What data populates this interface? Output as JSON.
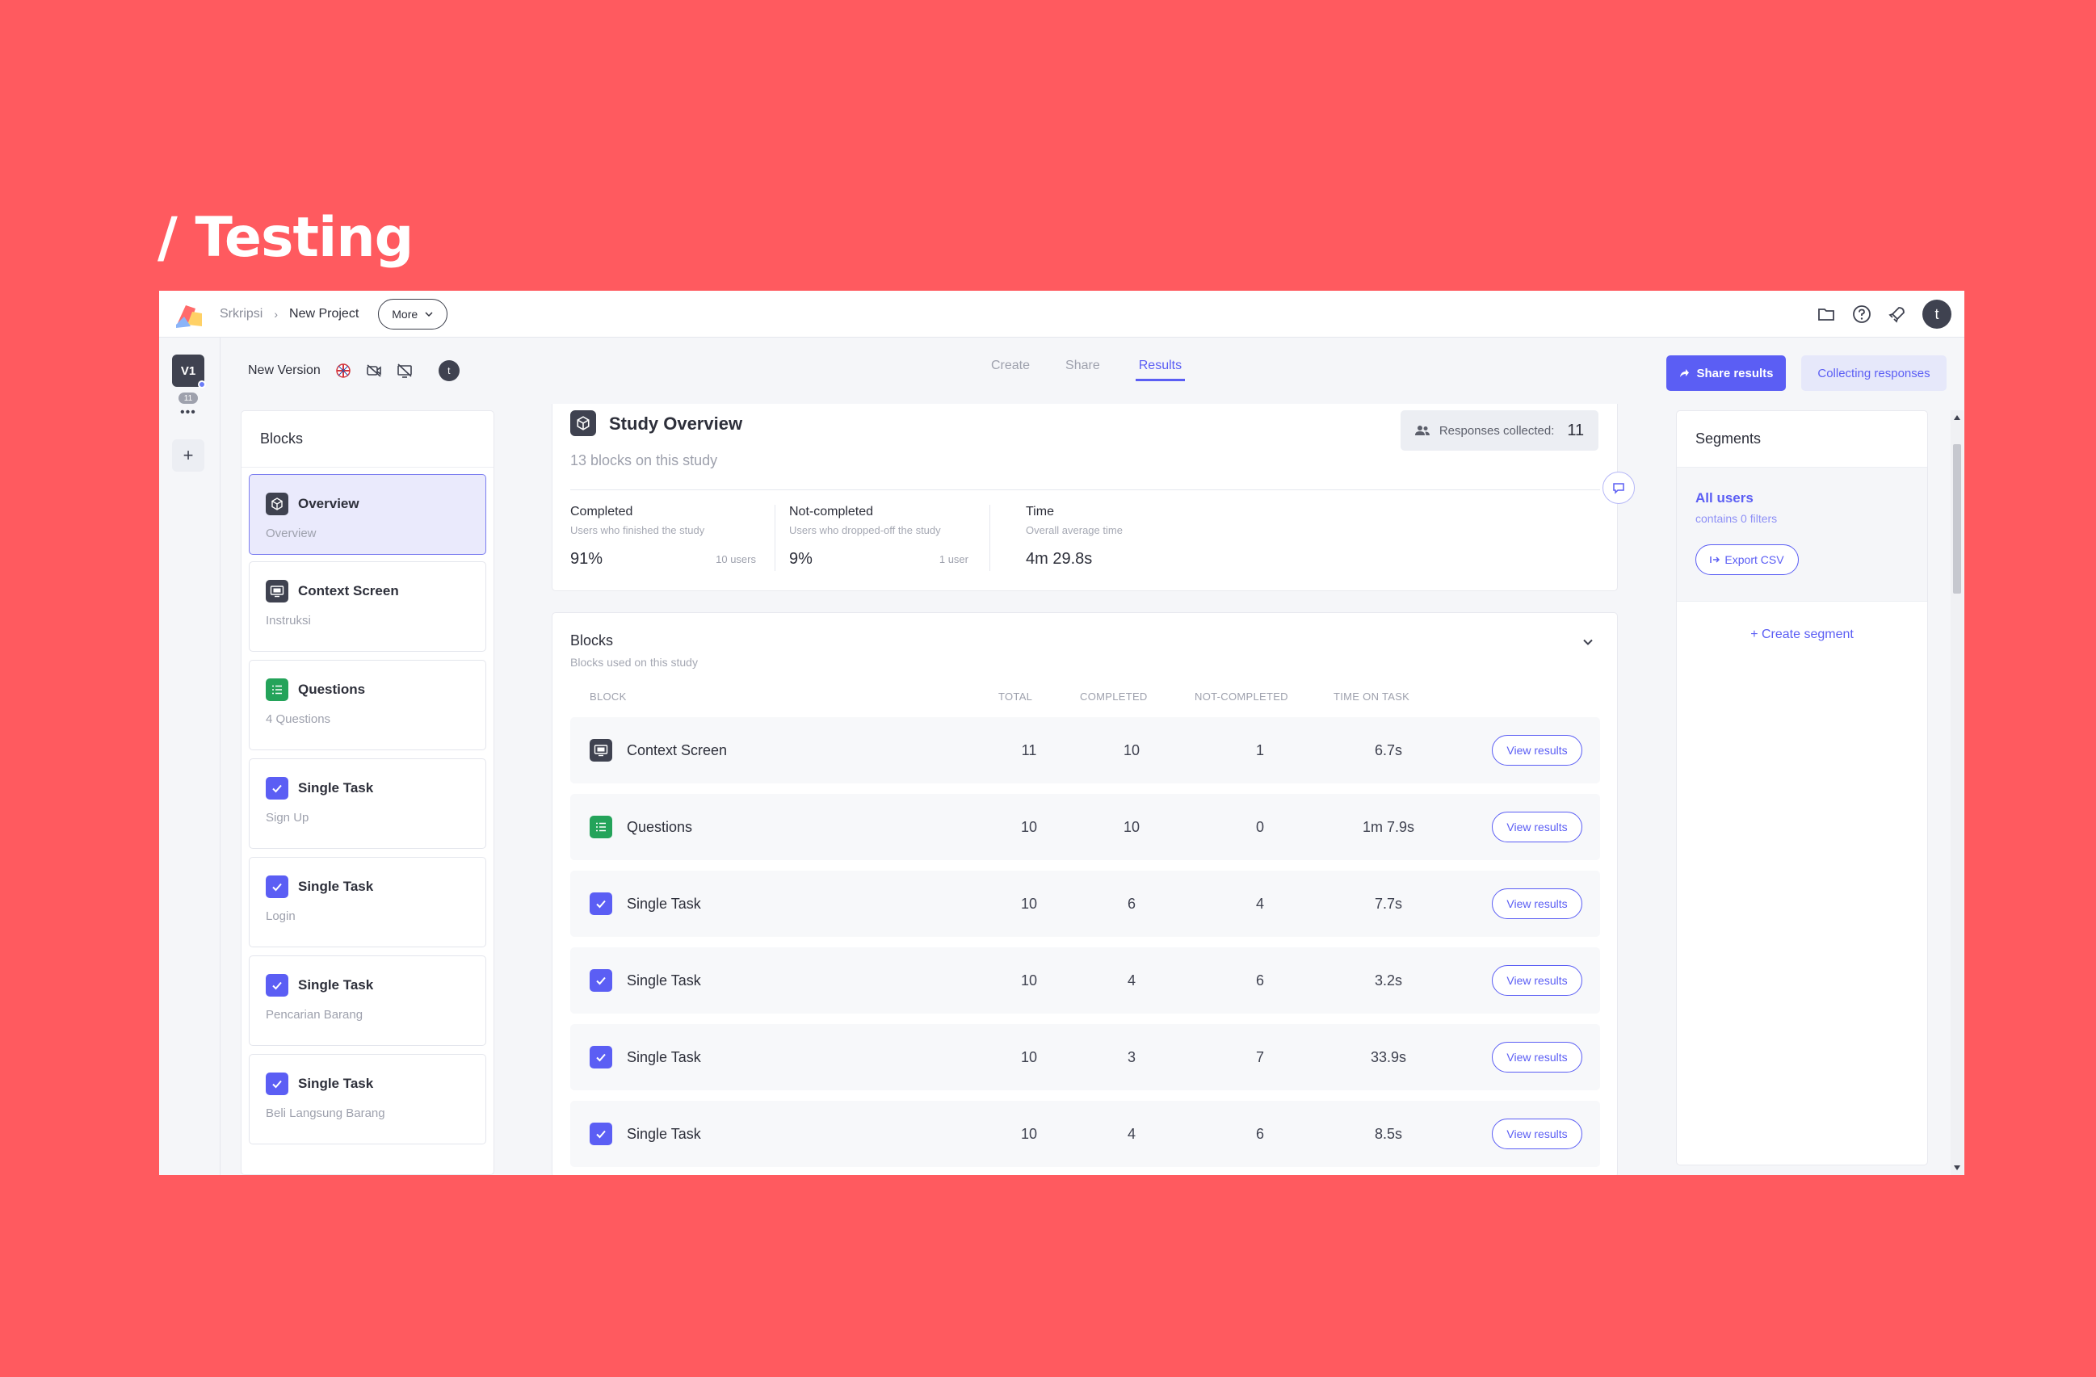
{
  "headline": "/ Testing",
  "topbar": {
    "breadcrumb": [
      "Srkripsi",
      "New Project"
    ],
    "more_label": "More",
    "icons": [
      "folder-icon",
      "help-icon",
      "rocket-icon"
    ],
    "user_initial": "t"
  },
  "rail": {
    "version": "V1",
    "count": "11",
    "dots": "•••",
    "add": "+"
  },
  "subheader": {
    "version_name": "New Version",
    "user_initial": "t"
  },
  "tabs": [
    {
      "label": "Create",
      "active": false
    },
    {
      "label": "Share",
      "active": false
    },
    {
      "label": "Results",
      "active": true
    }
  ],
  "actions": {
    "share": "Share results",
    "collecting": "Collecting responses"
  },
  "blocks_panel": {
    "title": "Blocks",
    "items": [
      {
        "title": "Overview",
        "subtitle": "Overview",
        "icon": "cube-icon",
        "color": "#3f4250",
        "selected": true
      },
      {
        "title": "Context Screen",
        "subtitle": "Instruksi",
        "icon": "screen-icon",
        "color": "#3f4250"
      },
      {
        "title": "Questions",
        "subtitle": "4 Questions",
        "icon": "list-icon",
        "color": "#24a35a"
      },
      {
        "title": "Single Task",
        "subtitle": "Sign Up",
        "icon": "check-icon",
        "color": "#5b5ef4"
      },
      {
        "title": "Single Task",
        "subtitle": "Login",
        "icon": "check-icon",
        "color": "#5b5ef4"
      },
      {
        "title": "Single Task",
        "subtitle": "Pencarian Barang",
        "icon": "check-icon",
        "color": "#5b5ef4"
      },
      {
        "title": "Single Task",
        "subtitle": "Beli Langsung Barang",
        "icon": "check-icon",
        "color": "#5b5ef4"
      }
    ]
  },
  "overview": {
    "title": "Study Overview",
    "subtitle": "13 blocks on this study",
    "responses_label": "Responses collected:",
    "responses_count": "11",
    "stats": [
      {
        "label": "Completed",
        "desc": "Users who finished the study",
        "value": "91%",
        "users": "10 users"
      },
      {
        "label": "Not-completed",
        "desc": "Users who dropped-off the study",
        "value": "9%",
        "users": "1 user"
      },
      {
        "label": "Time",
        "desc": "Overall average time",
        "value": "4m 29.8s",
        "users": ""
      }
    ]
  },
  "blocks_table": {
    "title": "Blocks",
    "subtitle": "Blocks used on this study",
    "headers": [
      "BLOCK",
      "TOTAL",
      "COMPLETED",
      "NOT-COMPLETED",
      "TIME ON TASK"
    ],
    "view_label": "View results",
    "rows": [
      {
        "name": "Context Screen",
        "icon": "screen-icon",
        "color": "#3f4250",
        "total": "11",
        "completed": "10",
        "not_completed": "1",
        "time": "6.7s"
      },
      {
        "name": "Questions",
        "icon": "list-icon",
        "color": "#24a35a",
        "total": "10",
        "completed": "10",
        "not_completed": "0",
        "time": "1m 7.9s"
      },
      {
        "name": "Single Task",
        "icon": "check-icon",
        "color": "#5b5ef4",
        "total": "10",
        "completed": "6",
        "not_completed": "4",
        "time": "7.7s"
      },
      {
        "name": "Single Task",
        "icon": "check-icon",
        "color": "#5b5ef4",
        "total": "10",
        "completed": "4",
        "not_completed": "6",
        "time": "3.2s"
      },
      {
        "name": "Single Task",
        "icon": "check-icon",
        "color": "#5b5ef4",
        "total": "10",
        "completed": "3",
        "not_completed": "7",
        "time": "33.9s"
      },
      {
        "name": "Single Task",
        "icon": "check-icon",
        "color": "#5b5ef4",
        "total": "10",
        "completed": "4",
        "not_completed": "6",
        "time": "8.5s"
      }
    ]
  },
  "segments": {
    "title": "Segments",
    "selected_name": "All users",
    "selected_desc": "contains 0 filters",
    "export_label": "Export CSV",
    "create_label": "+ Create segment"
  },
  "colors": {
    "background": "#ff5a5f",
    "accent": "#5b5ef4",
    "dark_icon": "#3f4250",
    "green_icon": "#24a35a"
  }
}
